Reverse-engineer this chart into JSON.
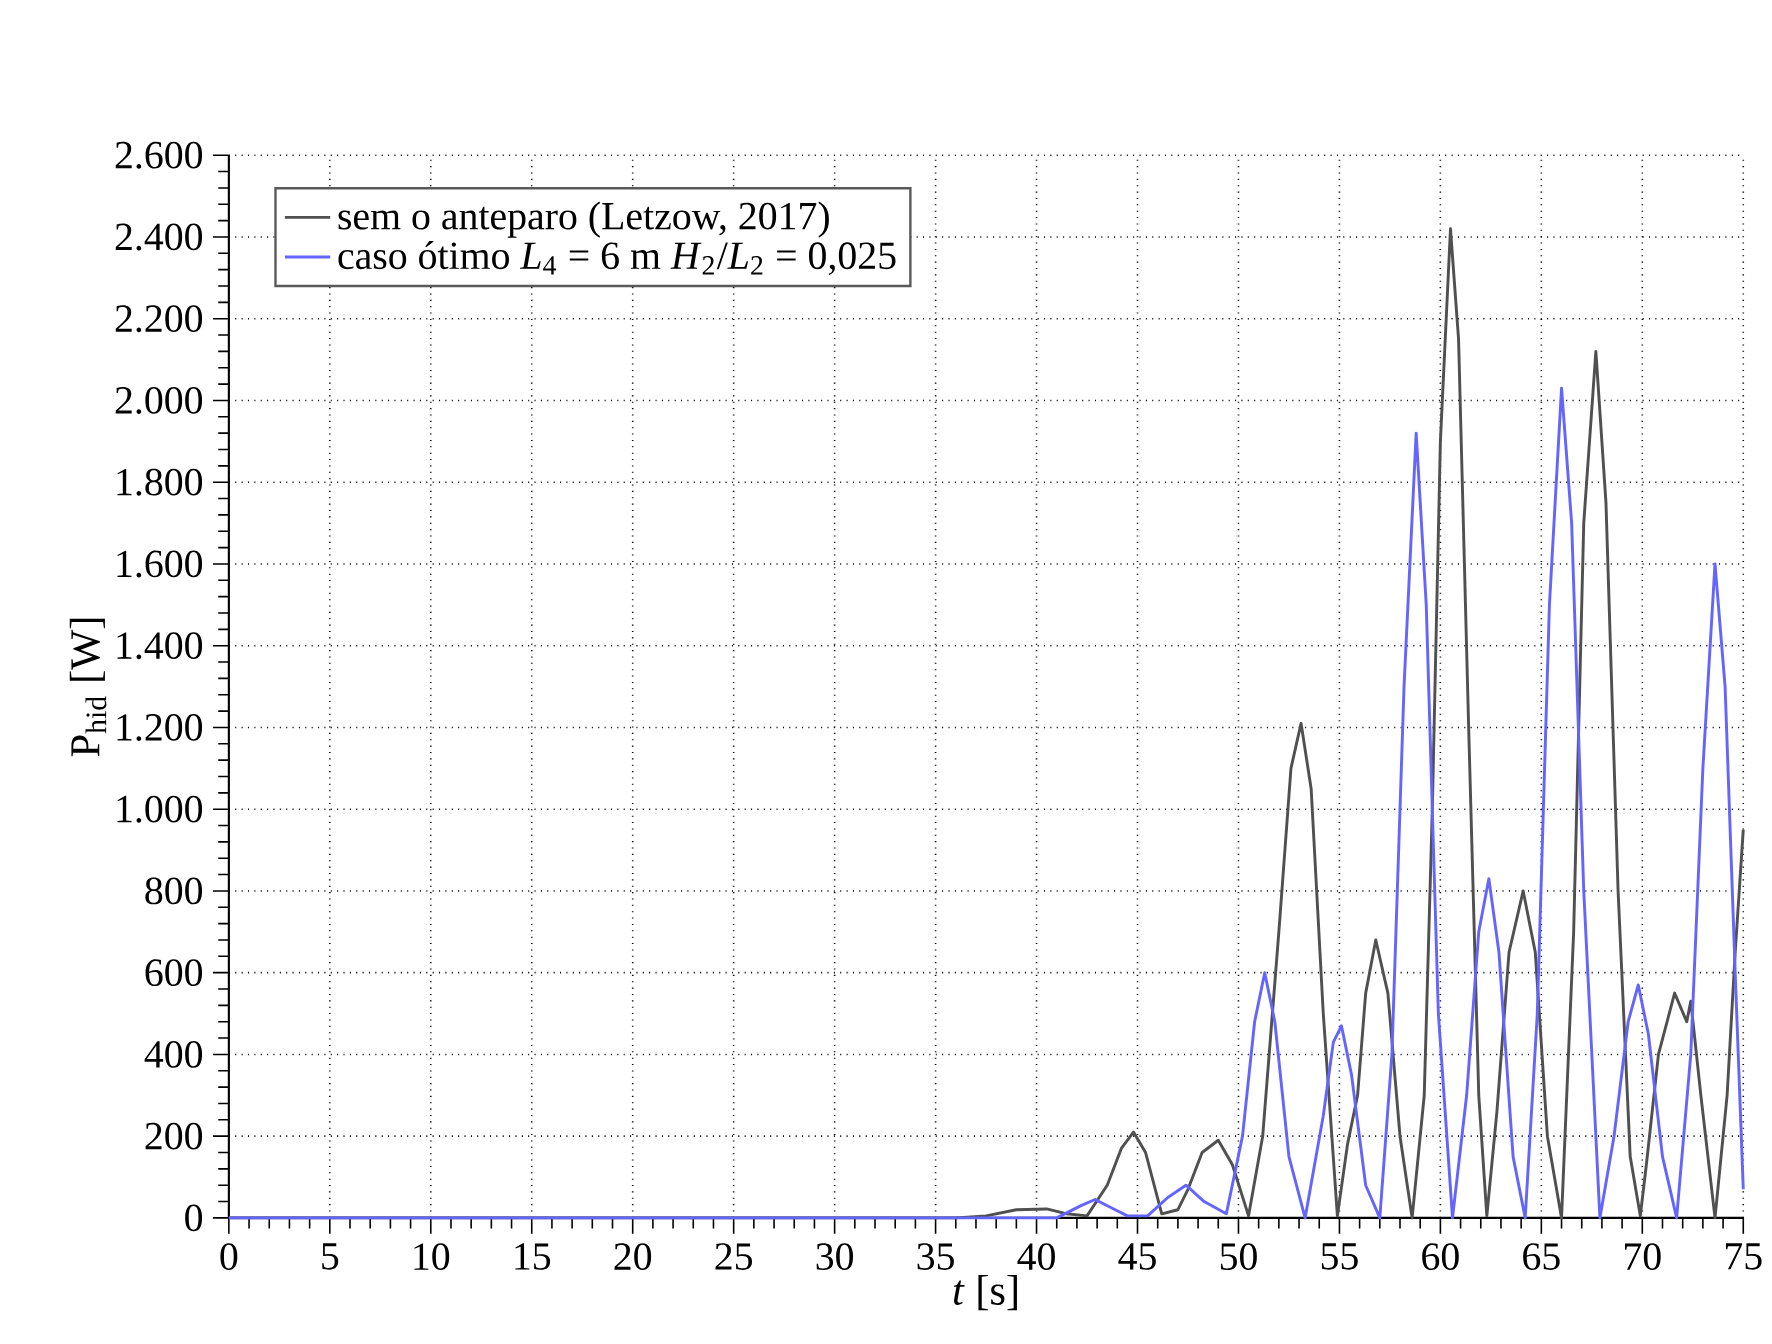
{
  "chart_data": {
    "type": "line",
    "xlabel": "*t* [s]",
    "ylabel": "P$_{hid}$ [W]",
    "xlim": [
      0,
      75
    ],
    "xticks": [
      0,
      5,
      10,
      15,
      20,
      25,
      30,
      35,
      40,
      45,
      50,
      55,
      60,
      65,
      70,
      75
    ],
    "ylim": [
      0,
      2600
    ],
    "yticks": [
      0,
      200,
      400,
      600,
      800,
      {
        "value": 1000,
        "label": "1.000"
      },
      {
        "value": 1200,
        "label": "1.200"
      },
      {
        "value": 1400,
        "label": "1.400"
      },
      {
        "value": 1600,
        "label": "1.600"
      },
      {
        "value": 1800,
        "label": "1.800"
      },
      {
        "value": 2000,
        "label": "2.000"
      },
      {
        "value": 2200,
        "label": "2.200"
      },
      {
        "value": 2400,
        "label": "2.400"
      },
      {
        "value": 2600,
        "label": "2.600"
      }
    ],
    "grid": true,
    "legend": "top left",
    "marker": "none",
    "line_style": "solid",
    "series": [
      {
        "name": "sem o anteparo (Letzow, 2017)",
        "color": "#505050",
        "x": [
          0,
          36,
          37.5,
          39,
          40.5,
          41.5,
          42.5,
          43.5,
          44.2,
          44.8,
          45.4,
          46.2,
          47,
          47.5,
          48.2,
          49,
          49.7,
          50.5,
          51.2,
          52,
          52.6,
          53.1,
          53.6,
          54.2,
          54.9,
          55.4,
          55.9,
          56.3,
          56.8,
          57.4,
          58,
          58.6,
          59.2,
          59.6,
          60.0,
          60.5,
          60.9,
          61.4,
          61.9,
          62.3,
          62.8,
          63.4,
          64.1,
          64.7,
          65.3,
          66,
          66.6,
          67.1,
          67.7,
          68.2,
          68.8,
          69.4,
          69.9,
          70.2,
          70.8,
          71.6,
          72.2,
          72.4,
          72.9,
          73.6,
          74.2,
          74.6,
          75
        ],
        "values": [
          0,
          0,
          5,
          20,
          22,
          10,
          5,
          80,
          170,
          210,
          160,
          10,
          20,
          70,
          160,
          190,
          130,
          5,
          200,
          700,
          1100,
          1210,
          1050,
          500,
          5,
          180,
          300,
          550,
          680,
          550,
          200,
          0,
          300,
          1000,
          1900,
          2420,
          2150,
          1200,
          300,
          5,
          260,
          650,
          800,
          650,
          200,
          0,
          700,
          1700,
          2120,
          1750,
          800,
          150,
          5,
          130,
          400,
          550,
          480,
          530,
          300,
          0,
          300,
          650,
          950
        ]
      },
      {
        "name": "caso ótimo *L*$_{4}$ = 6 m *H*$_{2}$/*L*$_{2}$ = 0,025",
        "color": "#6464ff",
        "x": [
          0,
          41,
          42.2,
          42.9,
          43.7,
          44.5,
          45.5,
          46.5,
          47.4,
          48.3,
          49.4,
          50.2,
          50.8,
          51.3,
          51.8,
          52.5,
          53.3,
          54.2,
          54.7,
          55.1,
          55.6,
          56.3,
          57,
          57.6,
          58.2,
          58.8,
          59.3,
          59.9,
          60.6,
          61.3,
          61.9,
          62.4,
          62.9,
          63.6,
          64.2,
          64.8,
          65.4,
          66.0,
          66.5,
          67.1,
          67.9,
          68.6,
          69.3,
          69.8,
          70.3,
          71,
          71.7,
          72.4,
          73,
          73.6,
          74.1,
          74.6,
          75
        ],
        "values": [
          0,
          0,
          30,
          45,
          25,
          5,
          5,
          50,
          80,
          40,
          10,
          200,
          480,
          600,
          480,
          150,
          0,
          250,
          430,
          470,
          350,
          80,
          0,
          400,
          1300,
          1920,
          1500,
          500,
          0,
          300,
          700,
          830,
          650,
          150,
          0,
          500,
          1500,
          2030,
          1700,
          800,
          0,
          200,
          480,
          570,
          450,
          150,
          0,
          400,
          1100,
          1600,
          1300,
          600,
          70
        ]
      }
    ]
  }
}
